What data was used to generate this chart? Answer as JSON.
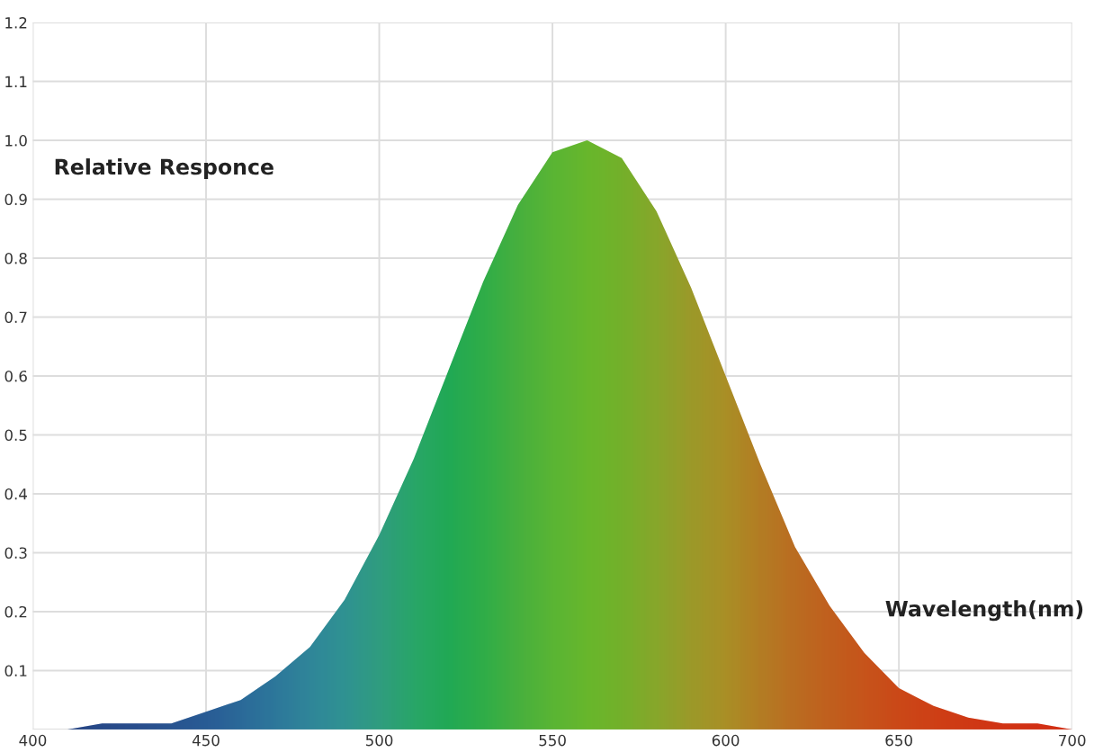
{
  "chart_data": {
    "type": "area",
    "xlabel": "Wavelength(nm)",
    "ylabel": "Relative Responce",
    "x": [
      400,
      410,
      420,
      430,
      440,
      450,
      460,
      470,
      480,
      490,
      500,
      510,
      520,
      530,
      540,
      550,
      560,
      570,
      580,
      590,
      600,
      610,
      620,
      630,
      640,
      650,
      660,
      670,
      680,
      690,
      700
    ],
    "series": [
      {
        "values": [
          0.0,
          0.0,
          0.01,
          0.01,
          0.01,
          0.03,
          0.05,
          0.09,
          0.14,
          0.22,
          0.33,
          0.46,
          0.61,
          0.76,
          0.89,
          0.98,
          1.0,
          0.97,
          0.88,
          0.75,
          0.6,
          0.45,
          0.31,
          0.21,
          0.13,
          0.07,
          0.04,
          0.02,
          0.01,
          0.01,
          0.0
        ],
        "colors": [
          "#1e2f8c",
          "#1f3590",
          "#203b95",
          "#21409a",
          "#22479e",
          "#2350a3",
          "#2560a8",
          "#2770aa",
          "#2a80a8",
          "#2b8ea0",
          "#2a9a8a",
          "#22a470",
          "#1aa85a",
          "#2aac4c",
          "#45b040",
          "#5ab535",
          "#6ab82c",
          "#78b02a",
          "#8ea52a",
          "#a59628",
          "#b58a25",
          "#c07522",
          "#c8631f",
          "#cf541c",
          "#d64718",
          "#db3a15",
          "#de3013",
          "#e02811",
          "#e22210",
          "#e31e10",
          "#e41c10"
        ]
      }
    ],
    "xlim": [
      400,
      700
    ],
    "ylim": [
      0,
      1.2
    ],
    "xticks": [
      400,
      450,
      500,
      550,
      600,
      650,
      700
    ],
    "yticks": [
      {
        "value": 0,
        "label": null
      },
      0.1,
      0.2,
      0.3,
      0.4,
      0.5,
      0.6,
      0.7,
      0.8,
      0.9,
      {
        "value": 1.0,
        "label": "1.0"
      },
      1.1,
      1.2
    ],
    "grid": true
  }
}
